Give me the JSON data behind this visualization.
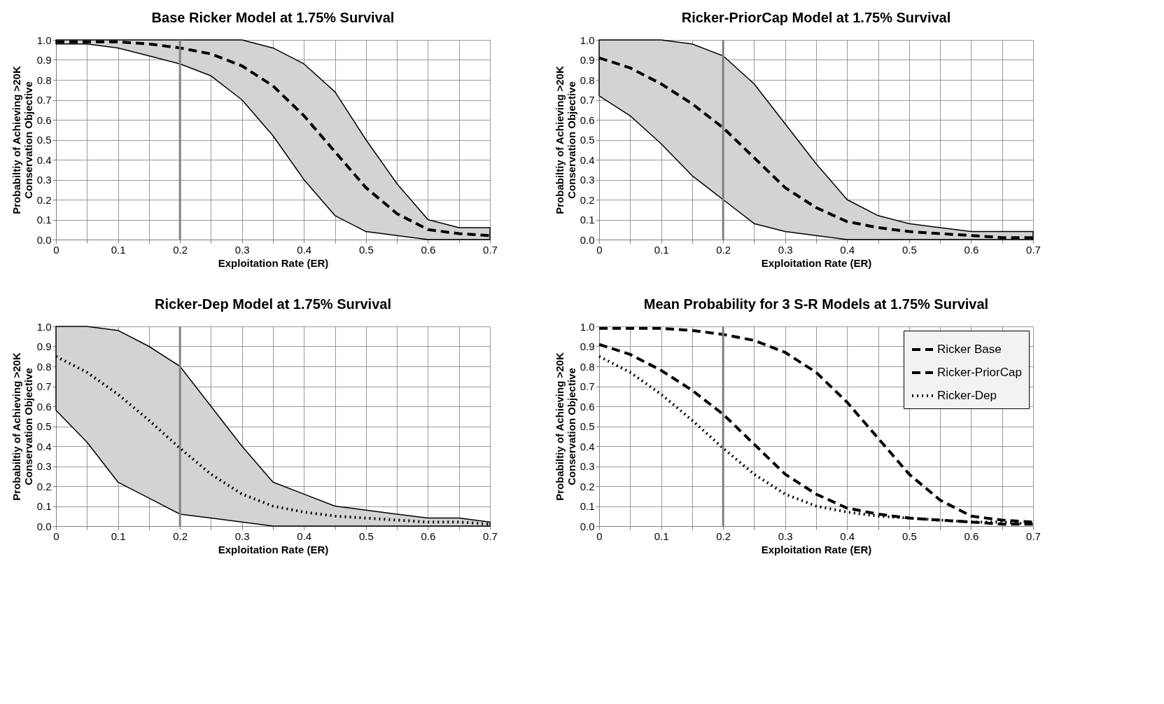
{
  "chart_data": [
    {
      "type": "line",
      "title": "Base Ricker Model at 1.75% Survival",
      "xlabel": "Exploitation Rate (ER)",
      "ylabel": "Probabiltiy of Achieving >20K\nConservation Objective",
      "x": [
        0,
        0.05,
        0.1,
        0.15,
        0.2,
        0.25,
        0.3,
        0.35,
        0.4,
        0.45,
        0.5,
        0.55,
        0.6,
        0.65,
        0.7
      ],
      "series": [
        {
          "color": "#000000",
          "line_style": "dashed",
          "values": [
            0.99,
            0.99,
            0.99,
            0.98,
            0.96,
            0.93,
            0.87,
            0.77,
            0.62,
            0.44,
            0.26,
            0.13,
            0.05,
            0.03,
            0.02
          ],
          "lower": [
            0.98,
            0.98,
            0.96,
            0.92,
            0.88,
            0.82,
            0.7,
            0.52,
            0.3,
            0.12,
            0.04,
            0.02,
            0,
            0,
            0
          ],
          "upper": [
            1,
            1,
            1,
            1,
            1,
            1,
            1,
            0.96,
            0.88,
            0.74,
            0.5,
            0.28,
            0.1,
            0.06,
            0.06
          ]
        }
      ],
      "ref_lines": [
        {
          "axis": "x",
          "value": 0.2,
          "color": "#808080"
        }
      ],
      "xlim": [
        0,
        0.7
      ],
      "ylim": [
        0,
        1
      ],
      "xticks": [
        0,
        {
          "value": 0.05,
          "label": null
        },
        0.1,
        {
          "value": 0.15,
          "label": null
        },
        0.2,
        {
          "value": 0.25,
          "label": null
        },
        0.3,
        {
          "value": 0.35,
          "label": null
        },
        0.4,
        {
          "value": 0.45,
          "label": null
        },
        0.5,
        {
          "value": 0.55,
          "label": null
        },
        0.6,
        {
          "value": 0.65,
          "label": null
        },
        0.7
      ],
      "yticks": [
        {
          "value": 0,
          "label": "0.0"
        },
        {
          "value": 0.1,
          "label": "0.1"
        },
        {
          "value": 0.2,
          "label": "0.2"
        },
        {
          "value": 0.3,
          "label": "0.3"
        },
        {
          "value": 0.4,
          "label": "0.4"
        },
        {
          "value": 0.5,
          "label": "0.5"
        },
        {
          "value": 0.6,
          "label": "0.6"
        },
        {
          "value": 0.7,
          "label": "0.7"
        },
        {
          "value": 0.8,
          "label": "0.8"
        },
        {
          "value": 0.9,
          "label": "0.9"
        },
        {
          "value": 1,
          "label": "1.0"
        }
      ],
      "grid": true,
      "marker": "none"
    },
    {
      "type": "line",
      "title": "Ricker-PriorCap  Model at 1.75% Survival",
      "xlabel": "Exploitation Rate (ER)",
      "ylabel": "Probabiltiy of Achieving >20K\nConservation Objective",
      "x": [
        0,
        0.05,
        0.1,
        0.15,
        0.2,
        0.25,
        0.3,
        0.35,
        0.4,
        0.45,
        0.5,
        0.55,
        0.6,
        0.65,
        0.7
      ],
      "series": [
        {
          "color": "#000000",
          "line_style": "dashed",
          "values": [
            0.91,
            0.86,
            0.78,
            0.68,
            0.56,
            0.41,
            0.26,
            0.16,
            0.09,
            0.06,
            0.04,
            0.03,
            0.02,
            0.01,
            0.01
          ],
          "lower": [
            0.72,
            0.62,
            0.48,
            0.32,
            0.2,
            0.08,
            0.04,
            0.02,
            0,
            0,
            0,
            0,
            0,
            0,
            0
          ],
          "upper": [
            1,
            1,
            1,
            0.98,
            0.92,
            0.78,
            0.58,
            0.38,
            0.2,
            0.12,
            0.08,
            0.06,
            0.04,
            0.04,
            0.04
          ]
        }
      ],
      "ref_lines": [
        {
          "axis": "x",
          "value": 0.2,
          "color": "#808080"
        }
      ],
      "xlim": [
        0,
        0.7
      ],
      "ylim": [
        0,
        1
      ],
      "xticks": [
        0,
        {
          "value": 0.05,
          "label": null
        },
        0.1,
        {
          "value": 0.15,
          "label": null
        },
        0.2,
        {
          "value": 0.25,
          "label": null
        },
        0.3,
        {
          "value": 0.35,
          "label": null
        },
        0.4,
        {
          "value": 0.45,
          "label": null
        },
        0.5,
        {
          "value": 0.55,
          "label": null
        },
        0.6,
        {
          "value": 0.65,
          "label": null
        },
        0.7
      ],
      "yticks": [
        {
          "value": 0,
          "label": "0.0"
        },
        {
          "value": 0.1,
          "label": "0.1"
        },
        {
          "value": 0.2,
          "label": "0.2"
        },
        {
          "value": 0.3,
          "label": "0.3"
        },
        {
          "value": 0.4,
          "label": "0.4"
        },
        {
          "value": 0.5,
          "label": "0.5"
        },
        {
          "value": 0.6,
          "label": "0.6"
        },
        {
          "value": 0.7,
          "label": "0.7"
        },
        {
          "value": 0.8,
          "label": "0.8"
        },
        {
          "value": 0.9,
          "label": "0.9"
        },
        {
          "value": 1,
          "label": "1.0"
        }
      ],
      "grid": true,
      "marker": "none"
    },
    {
      "type": "line",
      "title": "Ricker-Dep Model at 1.75% Survival",
      "xlabel": "Exploitation Rate (ER)",
      "ylabel": "Probabiltiy of Achieving >20K\nConservation Objective",
      "x": [
        0,
        0.05,
        0.1,
        0.15,
        0.2,
        0.25,
        0.3,
        0.35,
        0.4,
        0.45,
        0.5,
        0.55,
        0.6,
        0.65,
        0.7
      ],
      "series": [
        {
          "color": "#000000",
          "line_style": "dotted",
          "values": [
            0.85,
            0.77,
            0.66,
            0.53,
            0.39,
            0.26,
            0.16,
            0.1,
            0.07,
            0.05,
            0.04,
            0.03,
            0.02,
            0.02,
            0.01
          ],
          "lower": [
            0.58,
            0.42,
            0.22,
            0.14,
            0.06,
            0.04,
            0.02,
            0,
            0,
            0,
            0,
            0,
            0,
            0,
            0
          ],
          "upper": [
            1,
            1,
            0.98,
            0.9,
            0.8,
            0.6,
            0.4,
            0.22,
            0.16,
            0.1,
            0.08,
            0.06,
            0.04,
            0.04,
            0.02
          ]
        }
      ],
      "ref_lines": [
        {
          "axis": "x",
          "value": 0.2,
          "color": "#808080"
        }
      ],
      "xlim": [
        0,
        0.7
      ],
      "ylim": [
        0,
        1
      ],
      "xticks": [
        0,
        {
          "value": 0.05,
          "label": null
        },
        0.1,
        {
          "value": 0.15,
          "label": null
        },
        0.2,
        {
          "value": 0.25,
          "label": null
        },
        0.3,
        {
          "value": 0.35,
          "label": null
        },
        0.4,
        {
          "value": 0.45,
          "label": null
        },
        0.5,
        {
          "value": 0.55,
          "label": null
        },
        0.6,
        {
          "value": 0.65,
          "label": null
        },
        0.7
      ],
      "yticks": [
        {
          "value": 0,
          "label": "0.0"
        },
        {
          "value": 0.1,
          "label": "0.1"
        },
        {
          "value": 0.2,
          "label": "0.2"
        },
        {
          "value": 0.3,
          "label": "0.3"
        },
        {
          "value": 0.4,
          "label": "0.4"
        },
        {
          "value": 0.5,
          "label": "0.5"
        },
        {
          "value": 0.6,
          "label": "0.6"
        },
        {
          "value": 0.7,
          "label": "0.7"
        },
        {
          "value": 0.8,
          "label": "0.8"
        },
        {
          "value": 0.9,
          "label": "0.9"
        },
        {
          "value": 1,
          "label": "1.0"
        }
      ],
      "grid": true,
      "marker": "none"
    },
    {
      "type": "line",
      "title": "Mean Probability for 3 S-R Models at 1.75% Survival",
      "xlabel": "Exploitation Rate (ER)",
      "ylabel": "Probabiltiy of Achieving >20K\nConservation Objective",
      "x": [
        0,
        0.05,
        0.1,
        0.15,
        0.2,
        0.25,
        0.3,
        0.35,
        0.4,
        0.45,
        0.5,
        0.55,
        0.6,
        0.65,
        0.7
      ],
      "series": [
        {
          "name": "Ricker Base",
          "color": "#000000",
          "line_style": "dashed",
          "values": [
            0.99,
            0.99,
            0.99,
            0.98,
            0.96,
            0.93,
            0.87,
            0.77,
            0.62,
            0.44,
            0.26,
            0.13,
            0.05,
            0.03,
            0.02
          ]
        },
        {
          "name": "Ricker-PriorCap",
          "color": "#000000",
          "line_style": "dashed",
          "values": [
            0.91,
            0.86,
            0.78,
            0.68,
            0.56,
            0.41,
            0.26,
            0.16,
            0.09,
            0.06,
            0.04,
            0.03,
            0.02,
            0.01,
            0.01
          ]
        },
        {
          "name": "Ricker-Dep",
          "color": "#000000",
          "line_style": "dotted",
          "values": [
            0.85,
            0.77,
            0.66,
            0.53,
            0.39,
            0.26,
            0.16,
            0.1,
            0.07,
            0.05,
            0.04,
            0.03,
            0.02,
            0.02,
            0.01
          ]
        }
      ],
      "ref_lines": [
        {
          "axis": "x",
          "value": 0.2,
          "color": "#808080"
        }
      ],
      "xlim": [
        0,
        0.7
      ],
      "ylim": [
        0,
        1
      ],
      "xticks": [
        0,
        {
          "value": 0.05,
          "label": null
        },
        0.1,
        {
          "value": 0.15,
          "label": null
        },
        0.2,
        {
          "value": 0.25,
          "label": null
        },
        0.3,
        {
          "value": 0.35,
          "label": null
        },
        0.4,
        {
          "value": 0.45,
          "label": null
        },
        0.5,
        {
          "value": 0.55,
          "label": null
        },
        0.6,
        {
          "value": 0.65,
          "label": null
        },
        0.7
      ],
      "yticks": [
        {
          "value": 0,
          "label": "0.0"
        },
        {
          "value": 0.1,
          "label": "0.1"
        },
        {
          "value": 0.2,
          "label": "0.2"
        },
        {
          "value": 0.3,
          "label": "0.3"
        },
        {
          "value": 0.4,
          "label": "0.4"
        },
        {
          "value": 0.5,
          "label": "0.5"
        },
        {
          "value": 0.6,
          "label": "0.6"
        },
        {
          "value": 0.7,
          "label": "0.7"
        },
        {
          "value": 0.8,
          "label": "0.8"
        },
        {
          "value": 0.9,
          "label": "0.9"
        },
        {
          "value": 1,
          "label": "1.0"
        }
      ],
      "grid": true,
      "legend": "top right",
      "marker": "none"
    }
  ]
}
